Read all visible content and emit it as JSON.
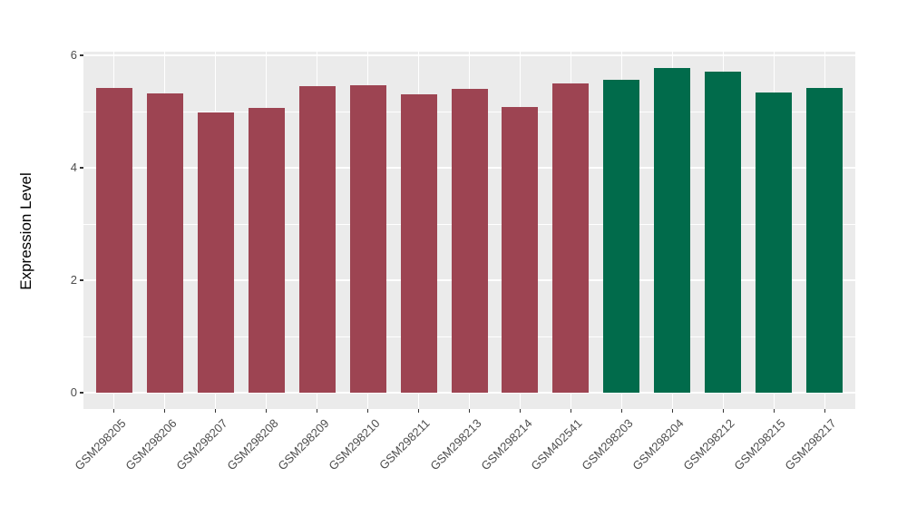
{
  "chart_data": {
    "type": "bar",
    "title": "",
    "xlabel": "",
    "ylabel": "Expression Level",
    "categories": [
      "GSM298205",
      "GSM298206",
      "GSM298207",
      "GSM298208",
      "GSM298209",
      "GSM298210",
      "GSM298211",
      "GSM298213",
      "GSM298214",
      "GSM402541",
      "GSM298203",
      "GSM298204",
      "GSM298212",
      "GSM298215",
      "GSM298217"
    ],
    "values": [
      5.42,
      5.33,
      4.98,
      5.06,
      5.45,
      5.47,
      5.3,
      5.41,
      5.08,
      5.5,
      5.57,
      5.77,
      5.71,
      5.34,
      5.42
    ],
    "bar_colors": [
      "#9D4452",
      "#9D4452",
      "#9D4452",
      "#9D4452",
      "#9D4452",
      "#9D4452",
      "#9D4452",
      "#9D4452",
      "#9D4452",
      "#9D4452",
      "#016B4B",
      "#016B4B",
      "#016B4B",
      "#016B4B",
      "#016B4B"
    ],
    "group_colors": {
      "maroon": "#9D4452",
      "green": "#016B4B"
    },
    "yticks": [
      0,
      2,
      4,
      6
    ],
    "yticks_minor": [
      1,
      3,
      5
    ],
    "ylim": [
      0,
      6.07
    ],
    "grid": "on",
    "legend": "none",
    "panel_background": "#EBEBEB",
    "gridline_color": "#FFFFFF",
    "tick_color": "#333333",
    "tick_label_color": "#4D4D4D"
  }
}
